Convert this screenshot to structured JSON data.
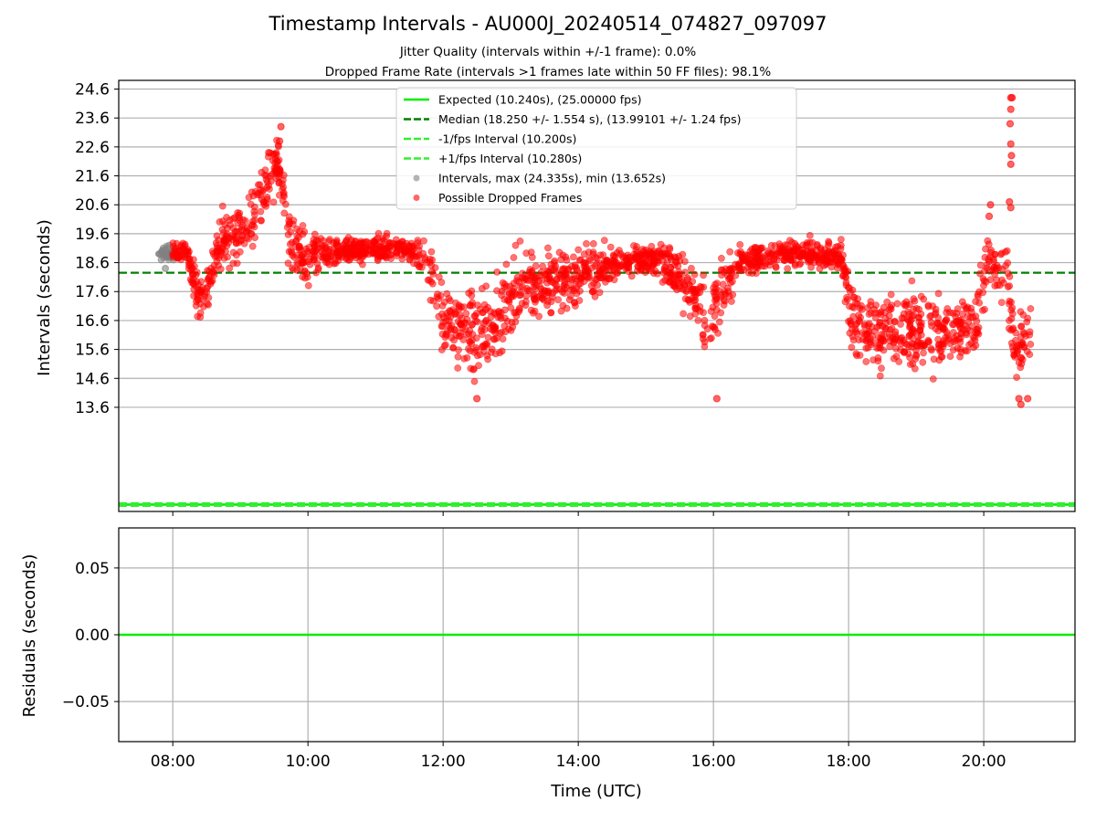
{
  "chart_data": [
    {
      "type": "scatter",
      "title": "Timestamp Intervals - AU000J_20240514_074827_097097",
      "subtitle_lines": [
        "Jitter Quality (intervals within +/-1 frame): 0.0%",
        "Dropped Frame Rate (intervals >1 frames late within 50 FF files): 98.1%"
      ],
      "xlabel": "Time (UTC)",
      "ylabel": "Intervals (seconds)",
      "xlim_hours": [
        7.2,
        21.35
      ],
      "ylim": [
        10.0,
        24.9
      ],
      "x_ticks": [
        8,
        10,
        12,
        14,
        16,
        18,
        20
      ],
      "x_tick_labels": [
        "08:00",
        "10:00",
        "12:00",
        "14:00",
        "16:00",
        "18:00",
        "20:00"
      ],
      "y_ticks": [
        13.6,
        14.6,
        15.6,
        16.6,
        17.6,
        18.6,
        19.6,
        20.6,
        21.6,
        22.6,
        23.6,
        24.6
      ],
      "y_tick_labels": [
        "13.6",
        "14.6",
        "15.6",
        "16.6",
        "17.6",
        "18.6",
        "19.6",
        "20.6",
        "21.6",
        "22.6",
        "23.6",
        "24.6"
      ],
      "grid": "y",
      "legend_placement": "top-center",
      "legend": [
        {
          "label": "Expected (10.240s), (25.00000 fps)",
          "style": "solid-line",
          "color": "#00ee00"
        },
        {
          "label": "Median (18.250 +/- 1.554 s), (13.99101 +/- 1.24 fps)",
          "style": "dashed-line",
          "color": "#008000"
        },
        {
          "label": "-1/fps Interval (10.200s)",
          "style": "dashed-line",
          "color": "#33ee33"
        },
        {
          "label": "+1/fps Interval (10.280s)",
          "style": "dashed-line",
          "color": "#33ee33"
        },
        {
          "label": "Intervals, max (24.335s), min (13.652s)",
          "style": "marker",
          "color": "#808080"
        },
        {
          "label": "Possible Dropped Frames",
          "style": "marker",
          "color": "#ff0000"
        }
      ],
      "reference_lines": [
        {
          "name": "Expected",
          "y": 10.24,
          "color": "#00ee00",
          "dash": false
        },
        {
          "name": "Median",
          "y": 18.25,
          "color": "#008000",
          "dash": true
        },
        {
          "name": "-1/fps",
          "y": 10.2,
          "color": "#33ee33",
          "dash": true
        },
        {
          "name": "+1/fps",
          "y": 10.28,
          "color": "#33ee33",
          "dash": true
        }
      ],
      "series": [
        {
          "name": "Intervals, max (24.335s), min (13.652s)",
          "color": "#808080",
          "x_hours": [
            7.8,
            7.83,
            7.86,
            7.89,
            7.92,
            7.95,
            7.98,
            8.01
          ],
          "y": [
            18.9,
            18.7,
            19.1,
            18.4,
            18.8,
            19.2,
            18.9,
            18.7
          ]
        },
        {
          "name": "Possible Dropped Frames",
          "color": "#ff0000",
          "profile": {
            "x_hours": [
              8.0,
              8.2,
              8.35,
              8.5,
              8.7,
              9.0,
              9.3,
              9.55,
              9.6,
              9.75,
              10.0,
              10.5,
              11.0,
              11.5,
              11.75,
              12.0,
              12.2,
              12.5,
              12.8,
              13.0,
              13.5,
              14.0,
              14.5,
              15.0,
              15.3,
              15.6,
              15.9,
              16.05,
              16.4,
              17.0,
              17.5,
              17.9,
              18.05,
              18.4,
              18.8,
              19.2,
              19.6,
              19.9,
              20.05,
              20.2,
              20.35,
              20.45,
              20.6,
              20.7
            ],
            "y_center": [
              19.0,
              19.1,
              17.5,
              17.6,
              19.3,
              19.6,
              20.8,
              22.0,
              21.5,
              19.2,
              18.8,
              19.0,
              19.1,
              19.1,
              18.7,
              16.8,
              16.3,
              16.2,
              16.5,
              17.4,
              17.9,
              18.2,
              18.5,
              18.8,
              18.6,
              17.8,
              16.5,
              17.2,
              18.7,
              18.9,
              18.9,
              18.8,
              16.4,
              16.2,
              16.3,
              16.2,
              16.1,
              16.5,
              18.8,
              18.3,
              18.0,
              15.6,
              15.8,
              15.9
            ],
            "y_spread": [
              0.3,
              0.3,
              0.7,
              0.7,
              0.8,
              0.8,
              1.0,
              0.8,
              0.8,
              1.0,
              0.7,
              0.4,
              0.4,
              0.4,
              0.8,
              1.2,
              1.4,
              1.3,
              1.4,
              1.3,
              1.0,
              0.9,
              0.6,
              0.4,
              0.6,
              1.1,
              1.3,
              1.2,
              0.5,
              0.4,
              0.4,
              0.5,
              1.1,
              1.2,
              1.3,
              1.3,
              1.2,
              1.3,
              0.9,
              0.7,
              1.3,
              1.0,
              1.0,
              1.0
            ]
          },
          "outliers": [
            {
              "x": 20.4,
              "y": 24.3
            },
            {
              "x": 20.42,
              "y": 24.3
            },
            {
              "x": 20.4,
              "y": 23.9
            },
            {
              "x": 20.39,
              "y": 23.4
            },
            {
              "x": 20.4,
              "y": 22.7
            },
            {
              "x": 20.41,
              "y": 22.3
            },
            {
              "x": 20.4,
              "y": 22.0
            },
            {
              "x": 20.38,
              "y": 20.7
            },
            {
              "x": 20.4,
              "y": 20.5
            },
            {
              "x": 20.1,
              "y": 20.6
            },
            {
              "x": 20.08,
              "y": 20.2
            },
            {
              "x": 9.6,
              "y": 23.3
            },
            {
              "x": 9.58,
              "y": 22.8
            },
            {
              "x": 9.42,
              "y": 22.4
            },
            {
              "x": 20.55,
              "y": 13.7
            },
            {
              "x": 20.52,
              "y": 13.9
            },
            {
              "x": 20.65,
              "y": 13.9
            },
            {
              "x": 12.5,
              "y": 13.9
            },
            {
              "x": 16.05,
              "y": 13.9
            }
          ]
        }
      ]
    },
    {
      "type": "line",
      "xlabel": "Time (UTC)",
      "ylabel": "Residuals (seconds)",
      "xlim_hours": [
        7.2,
        21.35
      ],
      "ylim": [
        -0.08,
        0.08
      ],
      "y_ticks": [
        0.05,
        0.0,
        -0.05
      ],
      "y_tick_labels": [
        "0.05",
        "0.00",
        "−0.05"
      ],
      "x_ticks": [
        8,
        10,
        12,
        14,
        16,
        18,
        20
      ],
      "x_tick_labels": [
        "08:00",
        "10:00",
        "12:00",
        "14:00",
        "16:00",
        "18:00",
        "20:00"
      ],
      "grid": "both",
      "series": [
        {
          "color": "#00ee00",
          "x_hours": [
            7.2,
            21.35
          ],
          "y": [
            0.0,
            0.0
          ]
        }
      ]
    }
  ]
}
